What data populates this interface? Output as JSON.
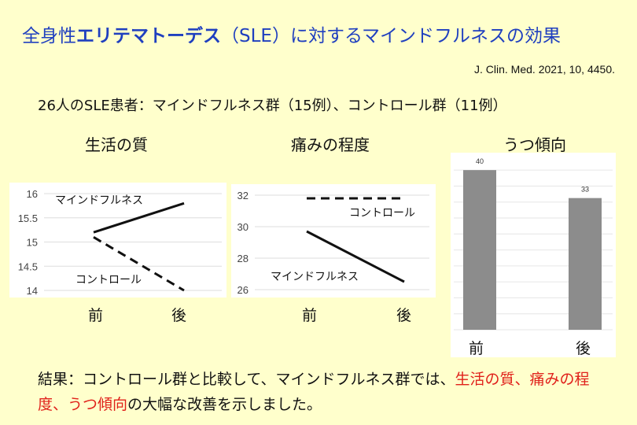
{
  "title": {
    "prefix": "全身性",
    "bold": "エリテマトーデス",
    "suffix": "（SLE）に対するマインドフルネスの効果"
  },
  "citation": "J. Clin. Med. 2021, 10, 4450.",
  "subjects": "26人のSLE患者：マインドフルネス群（15例）、コントロール群（11例）",
  "chart_data": [
    {
      "type": "line",
      "title": "生活の質",
      "categories": [
        "前",
        "後"
      ],
      "series": [
        {
          "name": "マインドフルネス",
          "values": [
            15.2,
            15.8
          ],
          "style": "solid"
        },
        {
          "name": "コントロール",
          "values": [
            15.1,
            14.0
          ],
          "style": "dashed"
        }
      ],
      "yticks": [
        "16",
        "15.5",
        "15",
        "14.5",
        "14"
      ],
      "ylim": [
        14,
        16
      ]
    },
    {
      "type": "line",
      "title": "痛みの程度",
      "categories": [
        "前",
        "後"
      ],
      "series": [
        {
          "name": "コントロール",
          "values": [
            31.8,
            31.8
          ],
          "style": "dashed"
        },
        {
          "name": "マインドフルネス",
          "values": [
            29.7,
            26.5
          ],
          "style": "solid"
        }
      ],
      "yticks": [
        "32",
        "30",
        "28",
        "26"
      ],
      "ylim": [
        26,
        32
      ]
    },
    {
      "type": "bar",
      "title": "うつ傾向",
      "categories": [
        "前",
        "後"
      ],
      "values": [
        40,
        33
      ],
      "ylim": [
        0,
        42
      ]
    }
  ],
  "result": {
    "prefix": "結果：コントロール群と比較して、マインドフルネス群では、",
    "highlight1": "生活の質",
    "sep1": "、",
    "highlight2": "痛みの程度",
    "sep2": "、",
    "highlight3": "うつ傾向",
    "suffix": "の大幅な改善を示しました。"
  },
  "colors": {
    "title": "#1f3fbf",
    "highlight": "#e0201a",
    "bar": "#8c8c8c",
    "background": "#ffffcc"
  }
}
